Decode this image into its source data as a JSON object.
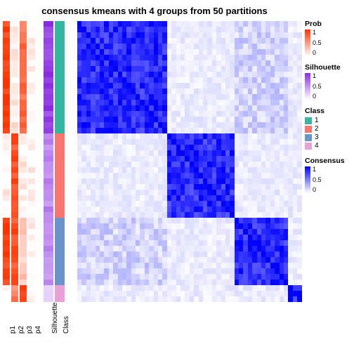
{
  "title": "consensus kmeans with 4 groups from 50 partitions",
  "annotation_columns": [
    {
      "key": "p1",
      "label": "p1",
      "width": 10
    },
    {
      "key": "p2",
      "label": "p2",
      "width": 10
    },
    {
      "key": "p3",
      "label": "p3",
      "width": 10
    },
    {
      "key": "p4",
      "label": "p4",
      "width": 10
    },
    {
      "key": "gap",
      "label": "",
      "width": 8
    },
    {
      "key": "sil",
      "label": "Silhouette",
      "width": 14
    },
    {
      "key": "cls",
      "label": "Class",
      "width": 14
    },
    {
      "key": "gap2",
      "label": "",
      "width": 8
    }
  ],
  "n_rows": 50,
  "blocks": [
    {
      "size": 20,
      "class": 1
    },
    {
      "size": 15,
      "class": 2
    },
    {
      "size": 12,
      "class": 3
    },
    {
      "size": 3,
      "class": 4
    }
  ],
  "class_colors": {
    "1": "#34b6a0",
    "2": "#f8766d",
    "3": "#6a93c9",
    "4": "#e8a0d6"
  },
  "prob_colors": {
    "low": "#ffffff",
    "high": "#ff3300"
  },
  "sil_colors": {
    "low": "#ffffff",
    "high": "#8a2be2"
  },
  "consensus_colors": {
    "low": "#ffffff",
    "mid": "#8080ff",
    "high": "#0000ff"
  },
  "legends": {
    "prob": {
      "title": "Prob",
      "ticks": [
        "1",
        "0.5",
        "0"
      ],
      "gradient": [
        "#ff3300",
        "#ffffff"
      ]
    },
    "sil": {
      "title": "Silhouette",
      "ticks": [
        "1",
        "0.5",
        "0"
      ],
      "gradient": [
        "#8a2be2",
        "#ffffff"
      ]
    },
    "class": {
      "title": "Class",
      "items": [
        {
          "label": "1",
          "color": "#34b6a0"
        },
        {
          "label": "2",
          "color": "#f8766d"
        },
        {
          "label": "3",
          "color": "#6a93c9"
        },
        {
          "label": "4",
          "color": "#e8a0d6"
        }
      ]
    },
    "consensus": {
      "title": "Consensus",
      "ticks": [
        "1",
        "0.5",
        "0"
      ],
      "gradient": [
        "#0000ff",
        "#ffffff"
      ]
    }
  },
  "fontsize_title": 13,
  "fontsize_label": 10,
  "fontsize_legend_title": 10.5,
  "fontsize_legend": 9
}
